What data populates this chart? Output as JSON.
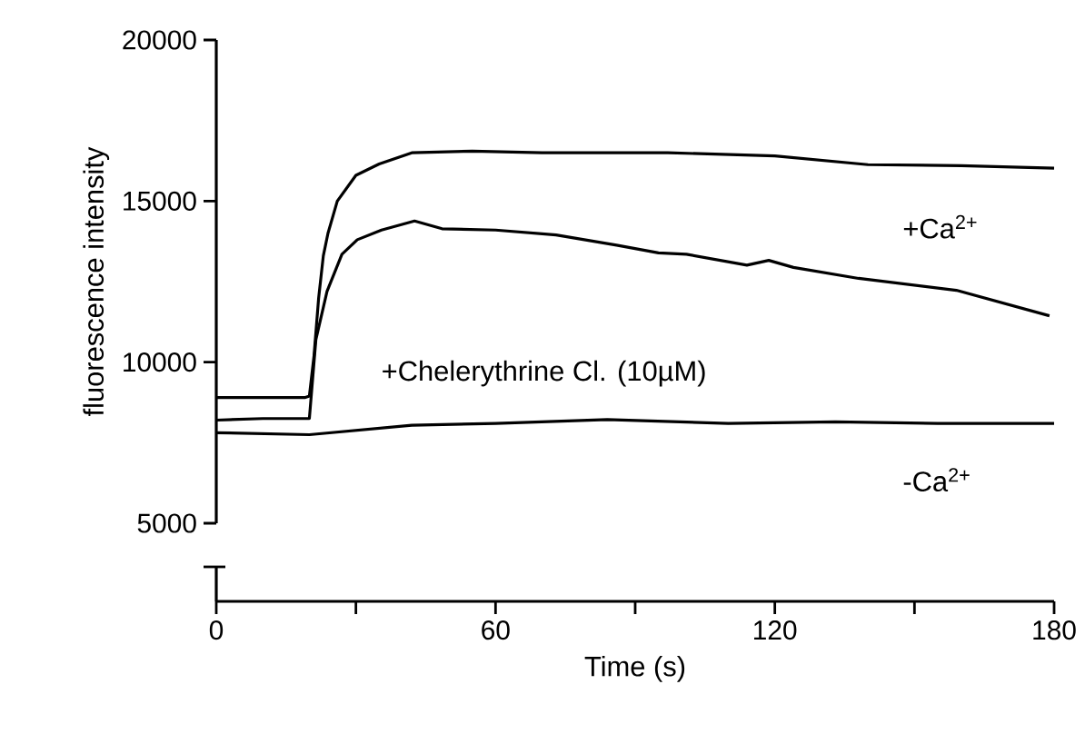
{
  "chart_data": {
    "type": "line",
    "xlabel": "Time (s)",
    "ylabel": "fluorescence intensity",
    "xlim": [
      0,
      180
    ],
    "ylim": [
      5000,
      20000
    ],
    "xticks": [
      0,
      60,
      120,
      180
    ],
    "yticks": [
      5000,
      10000,
      15000,
      20000
    ],
    "series": [
      {
        "color": "#000000",
        "x": [
          0,
          19,
          20,
          21,
          22,
          23,
          24,
          26,
          30,
          35,
          42,
          55,
          70,
          97,
          120,
          140,
          160,
          180
        ],
        "values": [
          8900,
          8900,
          8950,
          10200,
          12000,
          13300,
          14000,
          15000,
          15800,
          16150,
          16500,
          16550,
          16500,
          16500,
          16400,
          16130,
          16100,
          16020
        ]
      },
      {
        "color": "#000000",
        "x": [
          0,
          10,
          20,
          21.4,
          23.8,
          27,
          30.3,
          35.5,
          42.6,
          48.5,
          60,
          73,
          86,
          95,
          101,
          114,
          118.7,
          124,
          138,
          159,
          179
        ],
        "values": [
          8200,
          8250,
          8250,
          10700,
          12200,
          13350,
          13800,
          14100,
          14380,
          14140,
          14100,
          13950,
          13630,
          13390,
          13350,
          13010,
          13160,
          12940,
          12600,
          12230,
          11440
        ]
      },
      {
        "color": "#000000",
        "x": [
          0,
          20,
          42,
          60,
          84,
          110,
          133,
          155,
          180
        ],
        "values": [
          7810,
          7750,
          8040,
          8100,
          8220,
          8100,
          8150,
          8100,
          8100
        ]
      }
    ],
    "annotations": [
      "+Chelerythrine Cl. (10µM)",
      "+Ca$^{2+}$",
      "-Ca$^{2+}$"
    ]
  }
}
